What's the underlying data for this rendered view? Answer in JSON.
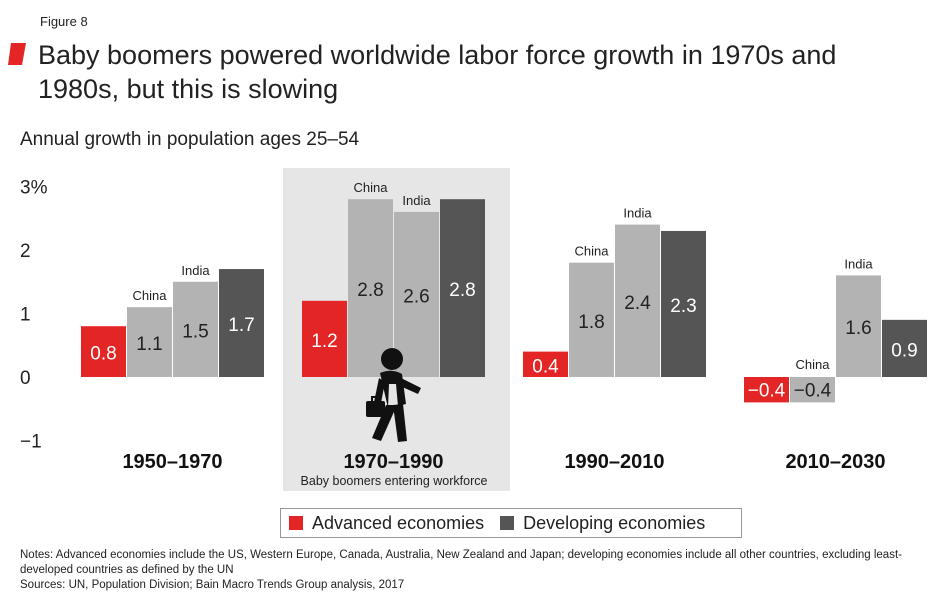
{
  "figure_label": "Figure 8",
  "title": "Baby boomers powered worldwide labor force growth in 1970s and 1980s, but this is slowing",
  "subtitle": "Annual growth in population ages 25–54",
  "colors": {
    "advanced": "#e32526",
    "china": "#b3b3b3",
    "india": "#b3b3b3",
    "developing": "#555555",
    "highlight": "#e6e6e6",
    "accent": "#e32526"
  },
  "highlight_note": "Baby boomers entering workforce",
  "legend": [
    {
      "label": "Advanced economies",
      "color_key": "advanced"
    },
    {
      "label": "Developing economies",
      "color_key": "developing"
    }
  ],
  "notes": [
    "Notes: Advanced economies include the US, Western Europe, Canada, Australia, New Zealand and Japan; developing economies include all other countries, excluding least-developed countries as defined by the UN",
    "Sources: UN, Population Division; Bain Macro Trends Group analysis, 2017"
  ],
  "chart_data": {
    "type": "bar",
    "categories": [
      "1950–1970",
      "1970–1990",
      "1990–2010",
      "2010–2030"
    ],
    "series": [
      {
        "name": "Advanced economies",
        "color_key": "advanced",
        "values": [
          0.8,
          1.2,
          0.4,
          -0.4
        ],
        "labels": [
          "0.8",
          "1.2",
          "0.4",
          "−0.4"
        ]
      },
      {
        "name": "China",
        "color_key": "china",
        "values": [
          1.1,
          2.8,
          1.8,
          -0.4
        ],
        "labels": [
          "1.1",
          "2.8",
          "1.8",
          "−0.4"
        ]
      },
      {
        "name": "India",
        "color_key": "india",
        "values": [
          1.5,
          2.6,
          2.4,
          1.6
        ],
        "labels": [
          "1.5",
          "2.6",
          "2.4",
          "1.6"
        ]
      },
      {
        "name": "Developing economies",
        "color_key": "developing",
        "values": [
          1.7,
          2.8,
          2.3,
          0.9
        ],
        "labels": [
          "1.7",
          "2.8",
          "2.3",
          "0.9"
        ]
      }
    ],
    "yticks": [
      3,
      2,
      1,
      0,
      -1
    ],
    "ytick_labels": [
      "3%",
      "2",
      "1",
      "0",
      "−1"
    ],
    "ylim": [
      -1,
      3
    ],
    "highlight_group": 1
  }
}
